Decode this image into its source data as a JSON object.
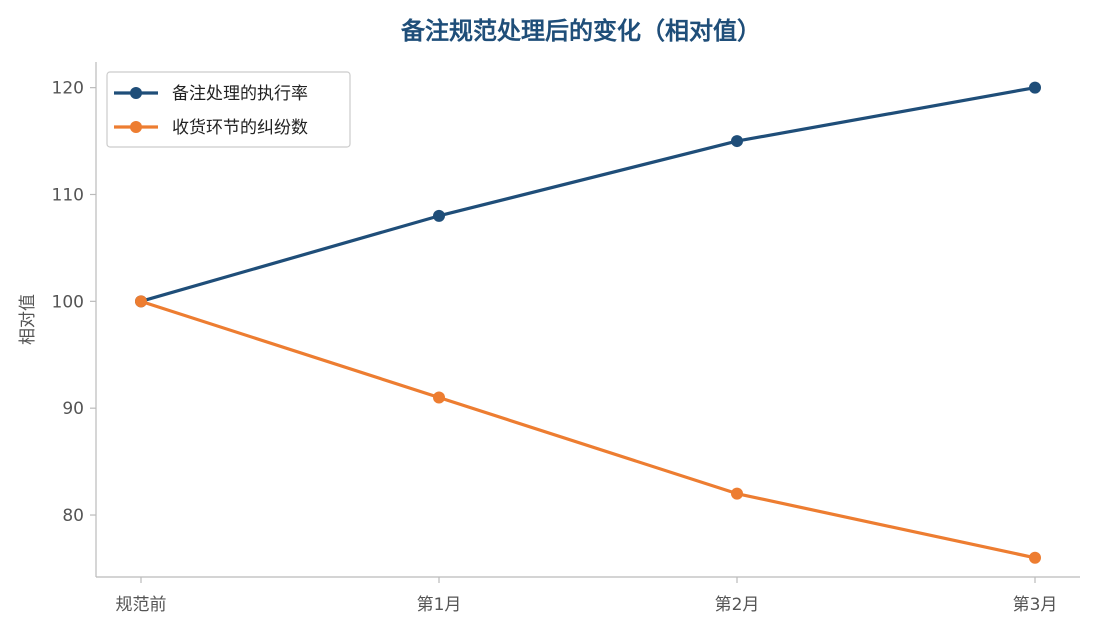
{
  "colors": {
    "title": "#1f4e79",
    "series_1": "#1f4e79",
    "series_2": "#ed7d31",
    "axis": "#bbbbbb",
    "tick_text": "#555555",
    "legend_border": "#cccccc"
  },
  "chart_data": {
    "type": "line",
    "title": "备注规范处理后的变化（相对值）",
    "xlabel": "",
    "ylabel": "相对值",
    "categories": [
      "规范前",
      "第1月",
      "第2月",
      "第3月"
    ],
    "series": [
      {
        "name": "备注处理的执行率",
        "values": [
          100,
          108,
          115,
          120
        ]
      },
      {
        "name": "收货环节的纠纷数",
        "values": [
          100,
          91,
          82,
          76
        ]
      }
    ],
    "ylim": [
      74.2,
      122.4
    ],
    "yticks": [
      80,
      90,
      100,
      110,
      120
    ],
    "grid": false,
    "legend_position": "top-left"
  }
}
